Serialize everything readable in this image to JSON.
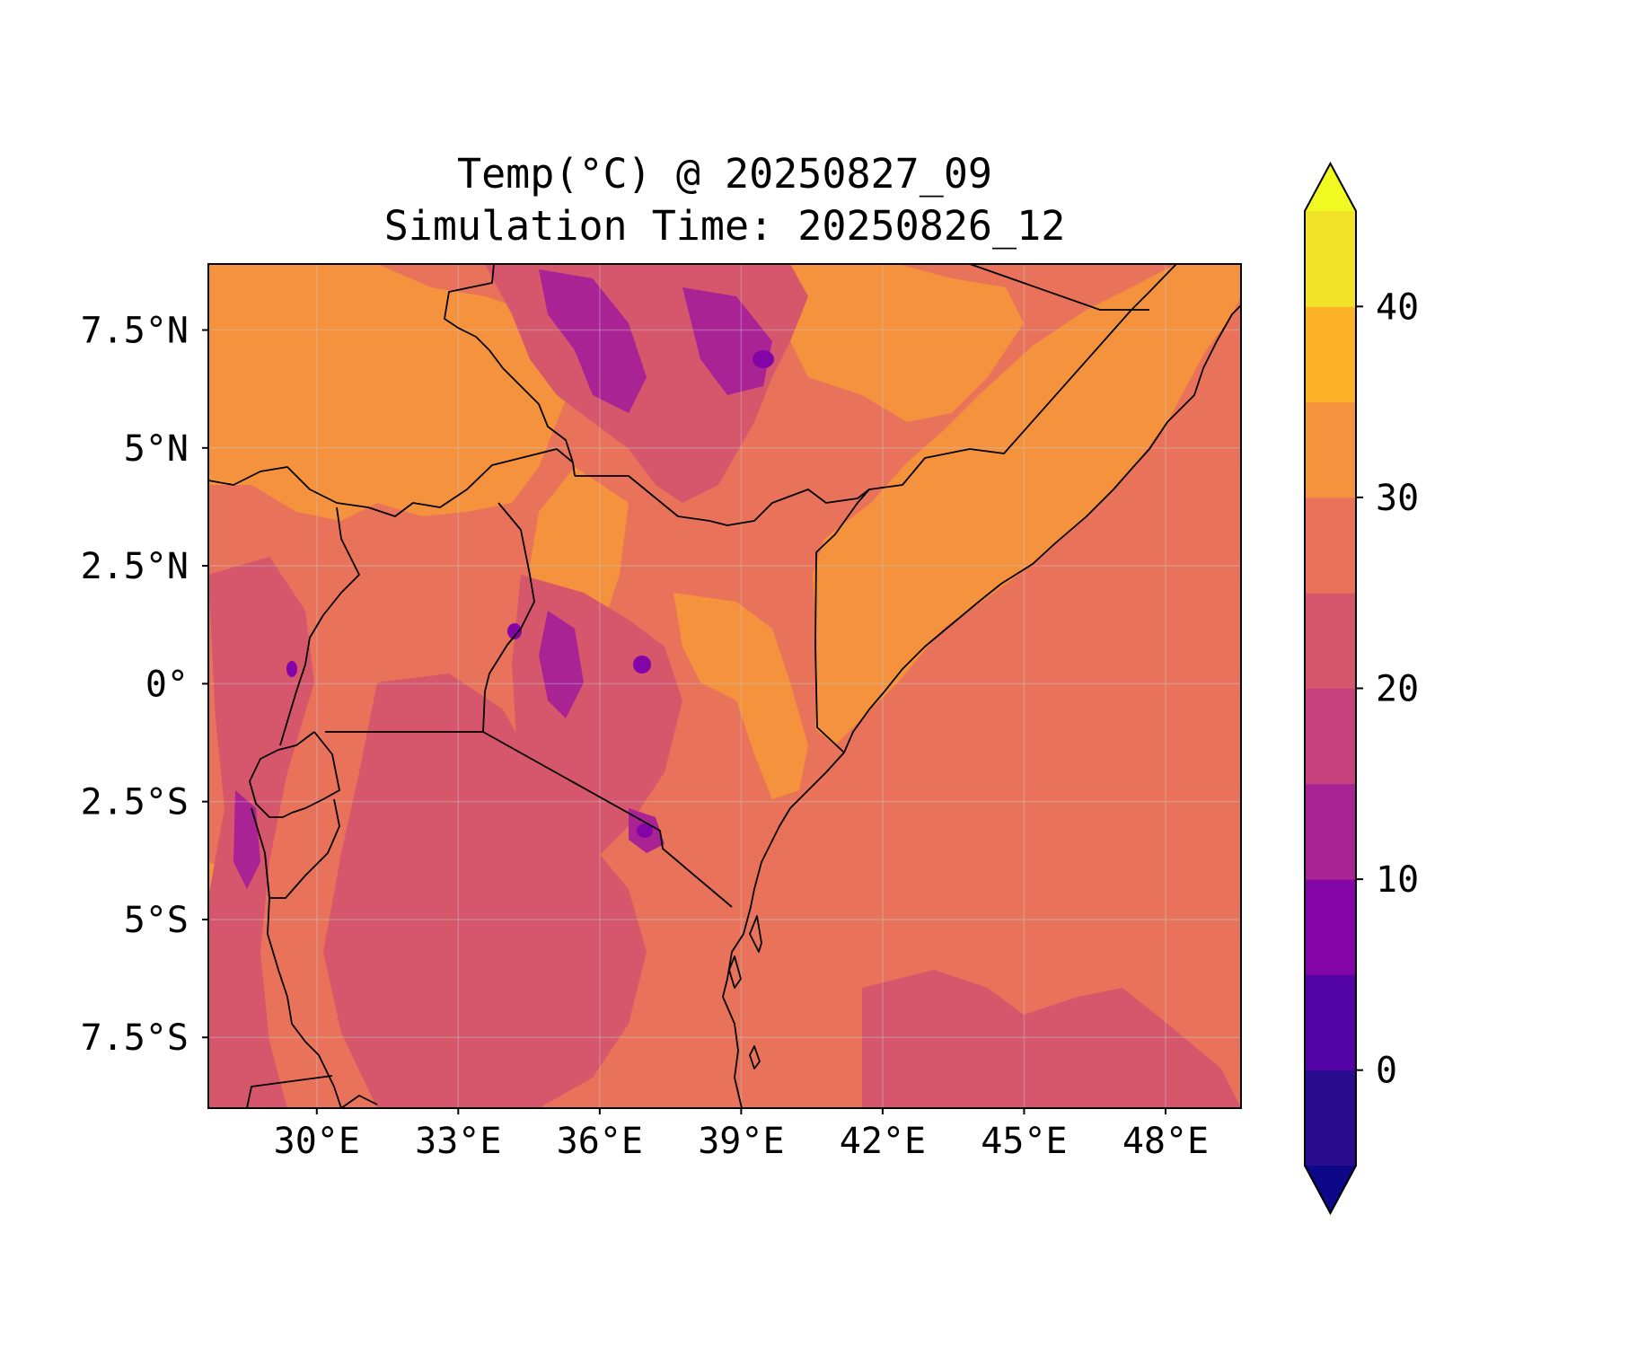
{
  "title": {
    "line1": "Temp(°C) @ 20250827_09",
    "line2": "Simulation Time: 20250826_12"
  },
  "map": {
    "lon_range": [
      27.7,
      49.6
    ],
    "lat_range": [
      -9.0,
      8.9
    ],
    "x_ticks": [
      "30°E",
      "33°E",
      "36°E",
      "39°E",
      "42°E",
      "45°E",
      "48°E"
    ],
    "y_ticks": [
      "7.5°N",
      "5°N",
      "2.5°N",
      "0°",
      "2.5°S",
      "5°S",
      "7.5°S"
    ],
    "grid": true,
    "background_color": "#e8735a"
  },
  "colorbar": {
    "ticks": [
      "0",
      "10",
      "20",
      "30",
      "40"
    ],
    "levels": [
      -5,
      0,
      5,
      10,
      15,
      20,
      25,
      30,
      35,
      40,
      45
    ],
    "colors": [
      "#2a0c8e",
      "#5302a3",
      "#8405a7",
      "#a92395",
      "#c6417d",
      "#d6566c",
      "#e8735a",
      "#f5923d",
      "#fcb227",
      "#f3e22a"
    ],
    "under_color": "#0d0887",
    "over_color": "#f0f921",
    "extend": "both"
  }
}
